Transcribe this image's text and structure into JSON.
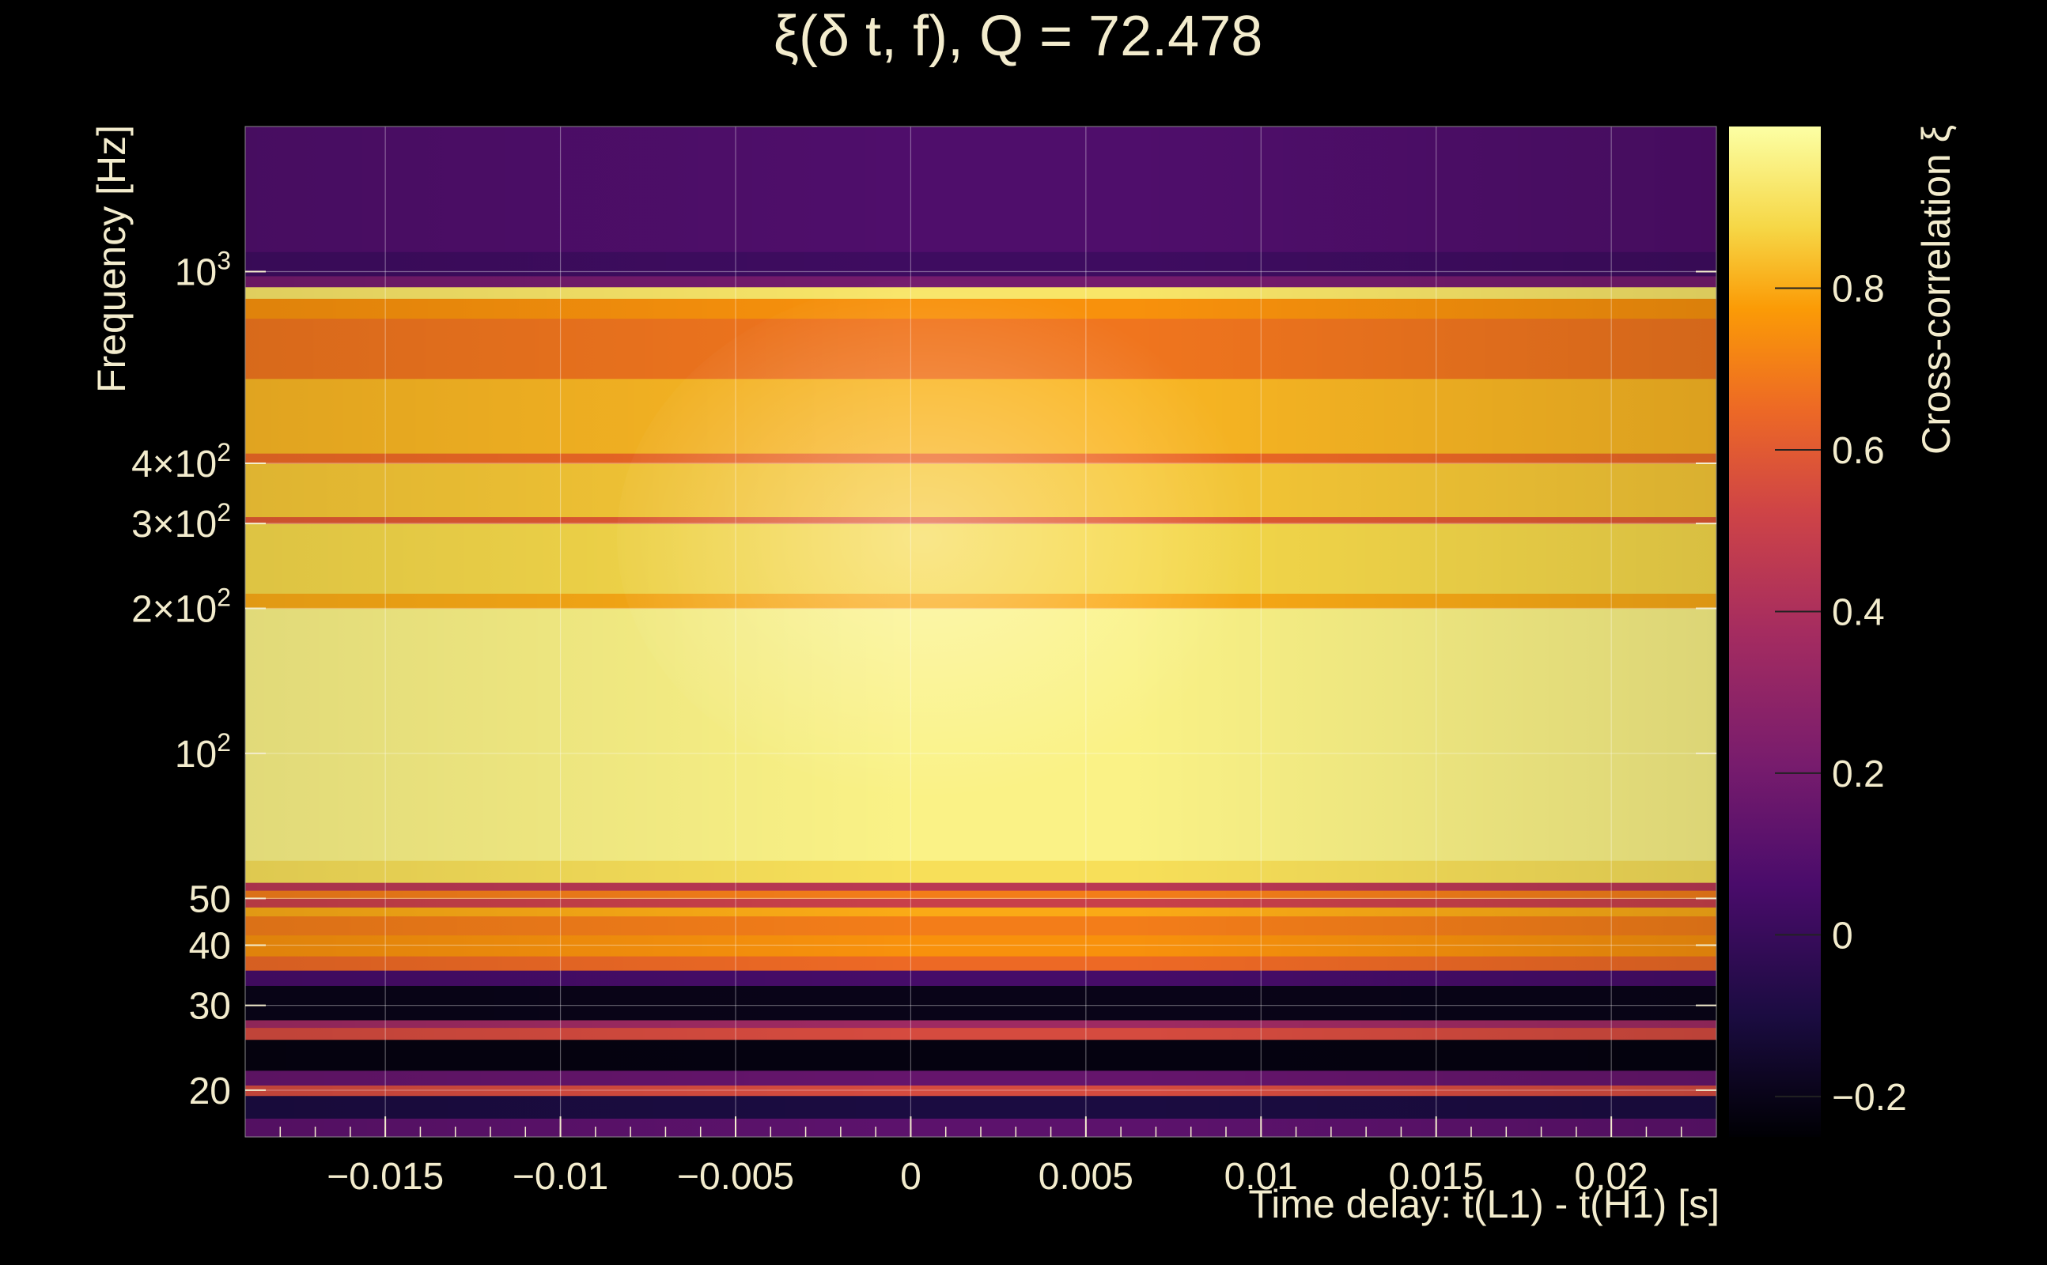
{
  "chart_data": {
    "type": "heatmap",
    "title": "ξ(δ t, f), Q = 72.478",
    "xlabel": "Time delay: t(L1) - t(H1) [s]",
    "ylabel": "Frequency [Hz]",
    "colorbar_label": "Cross-correlation ξ",
    "x_range": [
      -0.019,
      0.023
    ],
    "y_range": [
      16,
      2000
    ],
    "y_scale": "log",
    "x_ticks": [
      {
        "value": -0.015,
        "label": "−0.015"
      },
      {
        "value": -0.01,
        "label": "−0.01"
      },
      {
        "value": -0.005,
        "label": "−0.005"
      },
      {
        "value": 0,
        "label": "0"
      },
      {
        "value": 0.005,
        "label": "0.005"
      },
      {
        "value": 0.01,
        "label": "0.01"
      },
      {
        "value": 0.015,
        "label": "0.015"
      },
      {
        "value": 0.02,
        "label": "0.02"
      }
    ],
    "y_ticks": [
      {
        "value": 20,
        "label": "20"
      },
      {
        "value": 30,
        "label": "30"
      },
      {
        "value": 40,
        "label": "40"
      },
      {
        "value": 50,
        "label": "50"
      },
      {
        "value": 100,
        "label": "10",
        "sup": "2"
      },
      {
        "value": 200,
        "label": "2×10",
        "sup": "2"
      },
      {
        "value": 300,
        "label": "3×10",
        "sup": "2"
      },
      {
        "value": 400,
        "label": "4×10",
        "sup": "2"
      },
      {
        "value": 1000,
        "label": "10",
        "sup": "3"
      }
    ],
    "colorbar_range": [
      -0.25,
      1.0
    ],
    "colorbar_ticks": [
      {
        "value": -0.2,
        "label": "−0.2"
      },
      {
        "value": 0,
        "label": "0"
      },
      {
        "value": 0.2,
        "label": "0.2"
      },
      {
        "value": 0.4,
        "label": "0.4"
      },
      {
        "value": 0.6,
        "label": "0.6"
      },
      {
        "value": 0.8,
        "label": "0.8"
      }
    ],
    "colormap": "inferno",
    "grid": true,
    "frequency_bands": [
      {
        "f_min": 16,
        "f_max": 17.5,
        "value": 0.12
      },
      {
        "f_min": 17.5,
        "f_max": 19.5,
        "value": -0.1
      },
      {
        "f_min": 19.5,
        "f_max": 20.5,
        "value": 0.55
      },
      {
        "f_min": 20.5,
        "f_max": 22,
        "value": 0.15
      },
      {
        "f_min": 22,
        "f_max": 25.5,
        "value": -0.22
      },
      {
        "f_min": 25.5,
        "f_max": 27,
        "value": 0.55
      },
      {
        "f_min": 27,
        "f_max": 28,
        "value": 0.35
      },
      {
        "f_min": 28,
        "f_max": 33,
        "value": -0.2
      },
      {
        "f_min": 33,
        "f_max": 35.5,
        "value": 0.05
      },
      {
        "f_min": 35.5,
        "f_max": 38,
        "value": 0.65
      },
      {
        "f_min": 38,
        "f_max": 42,
        "value": 0.75
      },
      {
        "f_min": 42,
        "f_max": 46,
        "value": 0.7
      },
      {
        "f_min": 46,
        "f_max": 48,
        "value": 0.8
      },
      {
        "f_min": 48,
        "f_max": 50,
        "value": 0.5
      },
      {
        "f_min": 50,
        "f_max": 52,
        "value": 0.7
      },
      {
        "f_min": 52,
        "f_max": 54,
        "value": 0.45
      },
      {
        "f_min": 54,
        "f_max": 60,
        "value": 0.9
      },
      {
        "f_min": 60,
        "f_max": 200,
        "value": 0.96
      },
      {
        "f_min": 200,
        "f_max": 215,
        "value": 0.8
      },
      {
        "f_min": 215,
        "f_max": 300,
        "value": 0.88
      },
      {
        "f_min": 300,
        "f_max": 310,
        "value": 0.6
      },
      {
        "f_min": 310,
        "f_max": 400,
        "value": 0.85
      },
      {
        "f_min": 400,
        "f_max": 420,
        "value": 0.65
      },
      {
        "f_min": 420,
        "f_max": 600,
        "value": 0.82
      },
      {
        "f_min": 600,
        "f_max": 800,
        "value": 0.68
      },
      {
        "f_min": 800,
        "f_max": 880,
        "value": 0.75
      },
      {
        "f_min": 880,
        "f_max": 930,
        "value": 0.92
      },
      {
        "f_min": 930,
        "f_max": 980,
        "value": 0.2
      },
      {
        "f_min": 980,
        "f_max": 1100,
        "value": 0.02
      },
      {
        "f_min": 1100,
        "f_max": 2000,
        "value": 0.08
      }
    ]
  }
}
